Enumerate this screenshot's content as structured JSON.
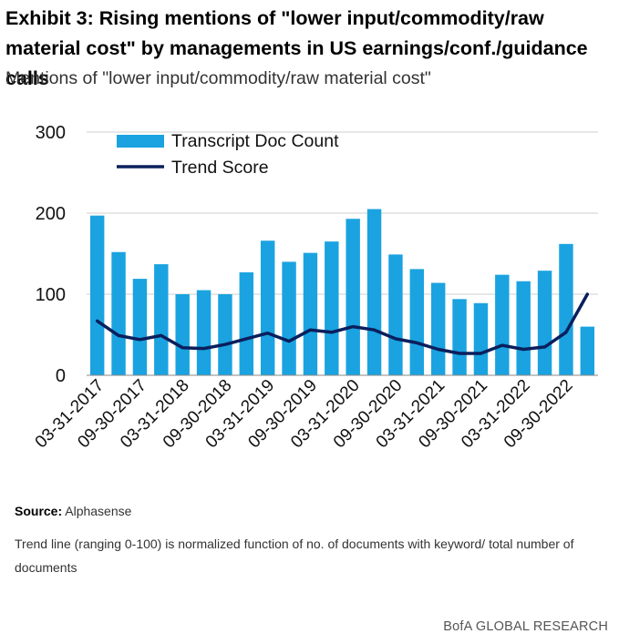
{
  "header": {
    "title": "Exhibit 3: Rising mentions of \"lower input/commodity/raw material cost\" by managements in US earnings/conf./guidance calls",
    "subtitle": "Mentions of \"lower input/commodity/raw material cost\""
  },
  "chart_data": {
    "type": "bar",
    "categories": [
      "03-31-2017",
      "06-30-2017",
      "09-30-2017",
      "12-31-2017",
      "03-31-2018",
      "06-30-2018",
      "09-30-2018",
      "12-31-2018",
      "03-31-2019",
      "06-30-2019",
      "09-30-2019",
      "12-31-2019",
      "03-31-2020",
      "06-30-2020",
      "09-30-2020",
      "12-31-2020",
      "03-31-2021",
      "06-30-2021",
      "09-30-2021",
      "12-31-2021",
      "03-31-2022",
      "06-30-2022",
      "09-30-2022",
      "12-31-2022"
    ],
    "x_tick_labels": [
      "03-31-2017",
      "09-30-2017",
      "03-31-2018",
      "09-30-2018",
      "03-31-2019",
      "09-30-2019",
      "03-31-2020",
      "09-30-2020",
      "03-31-2021",
      "09-30-2021",
      "03-31-2022",
      "09-30-2022"
    ],
    "series": [
      {
        "name": "Transcript Doc Count",
        "type": "bar",
        "color": "#1aa3e0",
        "values": [
          197,
          152,
          119,
          137,
          100,
          105,
          100,
          127,
          166,
          140,
          151,
          165,
          193,
          205,
          149,
          131,
          114,
          94,
          89,
          124,
          116,
          129,
          162,
          60
        ]
      },
      {
        "name": "Trend Score",
        "type": "line",
        "color": "#0a1f5c",
        "values": [
          67,
          49,
          44,
          49,
          34,
          33,
          38,
          45,
          52,
          42,
          56,
          53,
          60,
          56,
          45,
          40,
          32,
          27,
          27,
          37,
          32,
          35,
          53,
          100
        ]
      }
    ],
    "y_ticks": [
      "0",
      "100",
      "200",
      "300"
    ],
    "ylim": [
      0,
      300
    ],
    "grid": true,
    "legend_position": "top-left"
  },
  "footer": {
    "source_label": "Source:",
    "source_text": "Alphasense",
    "note": "Trend line (ranging 0-100) is normalized function of no. of documents with keyword/ total number of documents",
    "brand": "BofA GLOBAL RESEARCH"
  }
}
